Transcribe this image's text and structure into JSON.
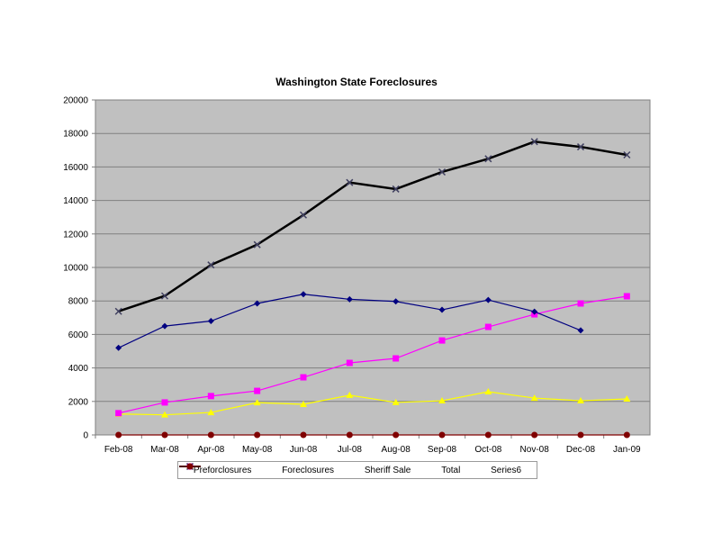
{
  "chart_data": {
    "type": "line",
    "title": "Washington State Foreclosures",
    "xlabel": "",
    "ylabel": "",
    "ylim": [
      0,
      20000
    ],
    "yticks": [
      0,
      2000,
      4000,
      6000,
      8000,
      10000,
      12000,
      14000,
      16000,
      18000,
      20000
    ],
    "grid": true,
    "legend_position": "bottom",
    "categories": [
      "Feb-08",
      "Mar-08",
      "Apr-08",
      "May-08",
      "Jun-08",
      "Jul-08",
      "Aug-08",
      "Sep-08",
      "Oct-08",
      "Nov-08",
      "Dec-08",
      "Jan-09"
    ],
    "series": [
      {
        "name": "Preforclosures",
        "color": "#000080",
        "marker": "diamond",
        "values": [
          5200,
          6500,
          6800,
          7850,
          8400,
          8100,
          7970,
          7470,
          8060,
          7360,
          6240,
          null
        ]
      },
      {
        "name": "Foreclosures",
        "color": "#ff00ff",
        "marker": "square",
        "values": [
          1300,
          1940,
          2320,
          2630,
          3440,
          4300,
          4570,
          5640,
          6450,
          7200,
          7850,
          8280
        ]
      },
      {
        "name": "Sheriff Sale",
        "color": "#ffff00",
        "marker": "triangle",
        "values": [
          1250,
          1200,
          1340,
          1930,
          1830,
          2370,
          1940,
          2040,
          2580,
          2200,
          2040,
          2150
        ]
      },
      {
        "name": "Total",
        "color": "#000000",
        "marker": "x",
        "values": [
          7380,
          8300,
          10150,
          11360,
          13130,
          15070,
          14680,
          15700,
          16490,
          17510,
          17200,
          16720
        ]
      },
      {
        "name": "Series6",
        "color": "#800000",
        "marker": "circle",
        "values": [
          0,
          0,
          0,
          0,
          0,
          0,
          0,
          0,
          0,
          0,
          0,
          0
        ]
      }
    ]
  }
}
